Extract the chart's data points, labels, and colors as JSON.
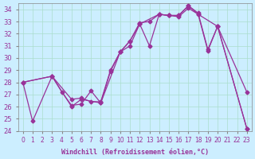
{
  "xlabel": "Windchill (Refroidissement éolien,°C)",
  "x_ticks": [
    0,
    1,
    2,
    3,
    4,
    5,
    6,
    7,
    8,
    9,
    10,
    11,
    12,
    13,
    14,
    15,
    16,
    17,
    18,
    19,
    20,
    21,
    22,
    23
  ],
  "ylim": [
    24,
    34.5
  ],
  "xlim": [
    -0.5,
    23.5
  ],
  "yticks": [
    24,
    25,
    26,
    27,
    28,
    29,
    30,
    31,
    32,
    33,
    34
  ],
  "background_color": "#cceeff",
  "line_color": "#993399",
  "curve_a_x": [
    0,
    1,
    3,
    4,
    5,
    6,
    7,
    8,
    9,
    10,
    11,
    12,
    13,
    14,
    15,
    16,
    17,
    18,
    19,
    20,
    23
  ],
  "curve_a_y": [
    28,
    24.8,
    28.5,
    27.2,
    26.1,
    26.2,
    27.3,
    26.3,
    28.9,
    30.5,
    31.0,
    32.8,
    31.0,
    33.6,
    33.5,
    33.4,
    34.1,
    33.6,
    30.6,
    32.6,
    27.2
  ],
  "curve_b_x": [
    0,
    3,
    5,
    6,
    8,
    10,
    11,
    12,
    14,
    15,
    16,
    17,
    18,
    20,
    23
  ],
  "curve_b_y": [
    28,
    28.5,
    26.0,
    26.6,
    26.3,
    30.5,
    31.4,
    32.8,
    33.6,
    33.5,
    33.5,
    34.3,
    33.6,
    32.6,
    24.2
  ],
  "curve_c_x": [
    0,
    3,
    5,
    6,
    7,
    8,
    9,
    10,
    11,
    12,
    13,
    14,
    15,
    16,
    17,
    18,
    19,
    20,
    23
  ],
  "curve_c_y": [
    28,
    28.5,
    26.6,
    26.7,
    26.4,
    26.4,
    29.0,
    30.5,
    31.4,
    32.9,
    33.0,
    33.6,
    33.5,
    33.5,
    34.3,
    33.7,
    30.7,
    32.6,
    24.2
  ]
}
